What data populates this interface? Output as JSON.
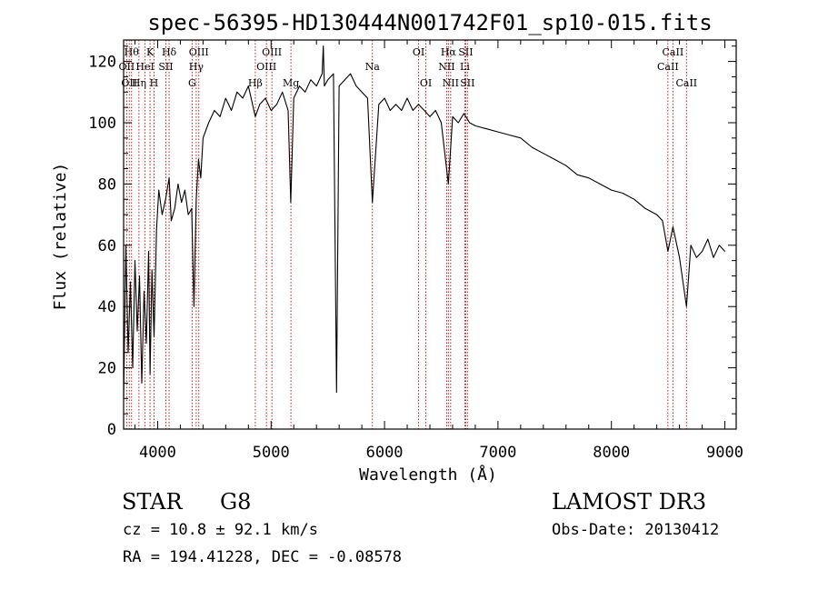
{
  "chart_data": {
    "type": "line",
    "title": "spec-56395-HD130444N001742F01_sp10-015.fits",
    "xlabel": "Wavelength (Å)",
    "ylabel": "Flux (relative)",
    "xlim": [
      3700,
      9100
    ],
    "ylim": [
      0,
      127
    ],
    "x_ticks": [
      4000,
      5000,
      6000,
      7000,
      8000,
      9000
    ],
    "x_tick_labels": [
      "4000",
      "5000",
      "6000",
      "7000",
      "8000",
      "9000"
    ],
    "y_ticks": [
      0,
      20,
      40,
      60,
      80,
      100,
      120
    ],
    "y_tick_labels": [
      "0",
      "20",
      "40",
      "60",
      "80",
      "100",
      "120"
    ],
    "series": [
      {
        "name": "spectrum",
        "color": "#000000",
        "x": [
          3700,
          3720,
          3740,
          3760,
          3780,
          3800,
          3820,
          3840,
          3860,
          3880,
          3900,
          3920,
          3933,
          3950,
          3968,
          3990,
          4010,
          4040,
          4070,
          4101,
          4120,
          4150,
          4180,
          4210,
          4240,
          4270,
          4300,
          4320,
          4340,
          4360,
          4380,
          4400,
          4450,
          4500,
          4550,
          4600,
          4650,
          4700,
          4750,
          4800,
          4861,
          4900,
          4950,
          5000,
          5050,
          5100,
          5150,
          5173,
          5200,
          5250,
          5300,
          5350,
          5400,
          5450,
          5460,
          5470,
          5500,
          5550,
          5577,
          5600,
          5650,
          5700,
          5750,
          5800,
          5850,
          5893,
          5950,
          6000,
          6050,
          6100,
          6150,
          6200,
          6250,
          6300,
          6350,
          6400,
          6450,
          6500,
          6563,
          6600,
          6650,
          6700,
          6750,
          6800,
          6900,
          7000,
          7100,
          7200,
          7300,
          7400,
          7500,
          7600,
          7700,
          7800,
          7900,
          8000,
          8100,
          8200,
          8300,
          8400,
          8450,
          8498,
          8542,
          8600,
          8662,
          8700,
          8750,
          8800,
          8850,
          8900,
          8950,
          9000
        ],
        "y": [
          10,
          60,
          25,
          48,
          20,
          55,
          32,
          50,
          15,
          45,
          28,
          58,
          18,
          52,
          30,
          65,
          78,
          70,
          75,
          82,
          68,
          72,
          80,
          74,
          78,
          70,
          72,
          40,
          75,
          88,
          82,
          95,
          100,
          104,
          102,
          108,
          104,
          110,
          108,
          112,
          102,
          106,
          108,
          104,
          106,
          110,
          104,
          74,
          108,
          112,
          110,
          114,
          112,
          116,
          125,
          112,
          114,
          116,
          12,
          112,
          114,
          116,
          112,
          110,
          108,
          74,
          106,
          108,
          104,
          106,
          104,
          108,
          104,
          106,
          104,
          102,
          104,
          100,
          80,
          102,
          100,
          103,
          100,
          99,
          98,
          97,
          96,
          95,
          92,
          90,
          88,
          86,
          83,
          82,
          80,
          78,
          77,
          75,
          72,
          70,
          68,
          58,
          66,
          56,
          40,
          60,
          56,
          58,
          62,
          56,
          60,
          58
        ]
      }
    ],
    "line_markers": [
      {
        "wavelength": 3727,
        "label": "OII",
        "row": 2
      },
      {
        "wavelength": 3750,
        "label": "OII",
        "row": 3
      },
      {
        "wavelength": 3770,
        "label": "Hθ",
        "row": 1
      },
      {
        "wavelength": 3835,
        "label": "Hη",
        "row": 3
      },
      {
        "wavelength": 3889,
        "label": "HeI",
        "row": 2
      },
      {
        "wavelength": 3933,
        "label": "K",
        "row": 1
      },
      {
        "wavelength": 3968,
        "label": "H",
        "row": 3
      },
      {
        "wavelength": 4072,
        "label": "SII",
        "row": 2
      },
      {
        "wavelength": 4101,
        "label": "Hδ",
        "row": 1
      },
      {
        "wavelength": 4304,
        "label": "G",
        "row": 3
      },
      {
        "wavelength": 4340,
        "label": "Hγ",
        "row": 2
      },
      {
        "wavelength": 4363,
        "label": "OIII",
        "row": 1
      },
      {
        "wavelength": 4861,
        "label": "Hβ",
        "row": 3
      },
      {
        "wavelength": 4959,
        "label": "OIII",
        "row": 2
      },
      {
        "wavelength": 5007,
        "label": "OIII",
        "row": 1
      },
      {
        "wavelength": 5175,
        "label": "Mg",
        "row": 3
      },
      {
        "wavelength": 5893,
        "label": "Na",
        "row": 2
      },
      {
        "wavelength": 6300,
        "label": "OI",
        "row": 1
      },
      {
        "wavelength": 6364,
        "label": "OI",
        "row": 3
      },
      {
        "wavelength": 6548,
        "label": "NII",
        "row": 2
      },
      {
        "wavelength": 6563,
        "label": "Hα",
        "row": 1
      },
      {
        "wavelength": 6583,
        "label": "NII",
        "row": 3
      },
      {
        "wavelength": 6708,
        "label": "Li",
        "row": 2
      },
      {
        "wavelength": 6716,
        "label": "SII",
        "row": 1
      },
      {
        "wavelength": 6731,
        "label": "SII",
        "row": 3
      },
      {
        "wavelength": 8498,
        "label": "CaII",
        "row": 2
      },
      {
        "wavelength": 8542,
        "label": "CaII",
        "row": 1
      },
      {
        "wavelength": 8662,
        "label": "CaII",
        "row": 3
      }
    ],
    "marker_color": "#cc0000",
    "axis_color": "#000000"
  },
  "info": {
    "class": "STAR",
    "subclass": "G8",
    "survey": "LAMOST DR3",
    "cz": "cz = 10.8 ± 92.1 km/s",
    "obs_date": "Obs-Date: 20130412",
    "radec": "RA = 194.41228, DEC =  -0.08578"
  }
}
